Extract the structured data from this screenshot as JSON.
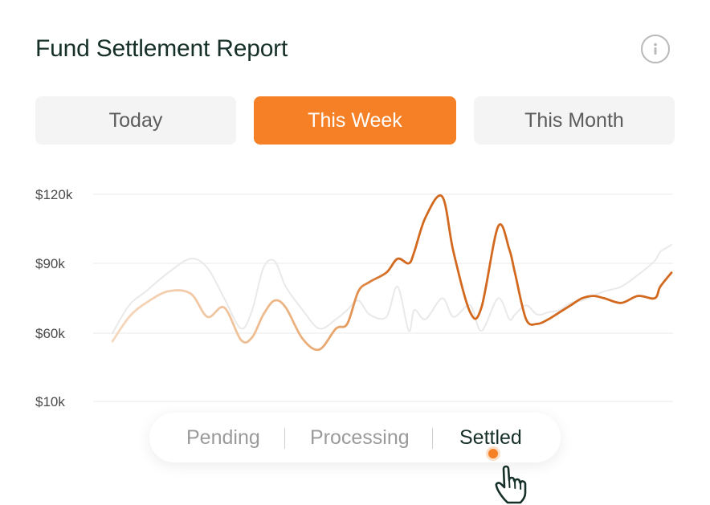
{
  "header": {
    "title": "Fund Settlement Report"
  },
  "tabs": [
    {
      "label": "Today",
      "active": false
    },
    {
      "label": "This Week",
      "active": true
    },
    {
      "label": "This Month",
      "active": false
    }
  ],
  "legend": {
    "items": [
      {
        "label": "Pending",
        "active": false
      },
      {
        "label": "Processing",
        "active": false
      },
      {
        "label": "Settled",
        "active": true
      }
    ]
  },
  "icons": {
    "info": "info-icon",
    "cursor": "hand-pointer-icon"
  },
  "colors": {
    "accent": "#f58025",
    "series_line": "#d2691e",
    "secondary_line": "#e9e9e9",
    "tab_inactive_bg": "#f4f4f4",
    "title": "#163029"
  },
  "chart_data": {
    "type": "line",
    "y_ticks": [
      {
        "label": "$120k",
        "value": 120000
      },
      {
        "label": "$90k",
        "value": 90000
      },
      {
        "label": "$60k",
        "value": 60000
      },
      {
        "label": "$10k",
        "value": 10000
      }
    ],
    "grid": true,
    "x_range": [
      0,
      100
    ],
    "series": [
      {
        "role": "highlighted",
        "x": [
          0,
          3,
          6,
          10,
          14,
          17,
          20,
          23,
          25,
          27,
          29,
          31,
          34,
          37,
          40,
          42,
          44,
          46,
          49,
          51,
          53,
          54,
          56,
          59,
          61,
          64,
          66,
          69,
          71,
          72,
          74,
          76,
          78,
          80,
          82,
          84,
          86,
          88,
          91,
          94,
          97,
          98,
          100
        ],
        "y": [
          54000,
          67000,
          73000,
          78000,
          77000,
          67000,
          71000,
          55000,
          57000,
          68000,
          74000,
          71000,
          56000,
          48000,
          62000,
          64000,
          78000,
          82000,
          86000,
          92000,
          90000,
          95000,
          110000,
          119000,
          95000,
          69000,
          71000,
          106000,
          96000,
          86000,
          66000,
          64000,
          66000,
          69000,
          72000,
          75000,
          76000,
          75000,
          73000,
          76000,
          75000,
          80000,
          86000
        ]
      },
      {
        "role": "background",
        "x": [
          0,
          3,
          6,
          10,
          14,
          17,
          20,
          23,
          25,
          27,
          29,
          31,
          34,
          37,
          40,
          42,
          44,
          46,
          49,
          51,
          53,
          54,
          56,
          59,
          61,
          64,
          66,
          69,
          71,
          72,
          74,
          76,
          78,
          80,
          82,
          84,
          86,
          88,
          91,
          94,
          97,
          98,
          100
        ],
        "y": [
          60000,
          72000,
          78000,
          86000,
          92000,
          88000,
          75000,
          62000,
          70000,
          88000,
          91000,
          80000,
          70000,
          62000,
          66000,
          70000,
          74000,
          68000,
          67000,
          80000,
          61000,
          70000,
          66000,
          75000,
          67000,
          72000,
          61000,
          75000,
          66000,
          68000,
          72000,
          68000,
          69000,
          70000,
          73000,
          74000,
          76000,
          78000,
          80000,
          85000,
          91000,
          95000,
          98000
        ]
      }
    ]
  }
}
